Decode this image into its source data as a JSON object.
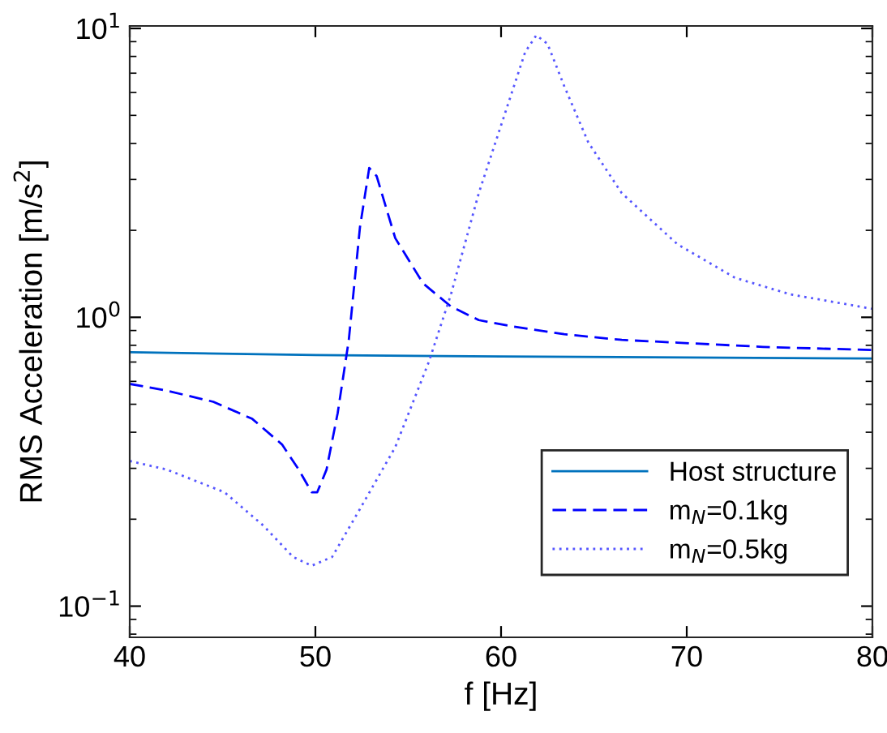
{
  "chart_data": {
    "type": "line",
    "xlabel": "f [Hz]",
    "ylabel": "RMS Acceleration [m/s$^{2}$]",
    "log": "y",
    "xlim": [
      40,
      80
    ],
    "xticks": [
      40,
      50,
      60,
      70,
      80
    ],
    "ylim": [
      0.078,
      10.2
    ],
    "yticks": [
      {
        "value": 0.1,
        "label": "10$^{−1}$"
      },
      {
        "value": 1,
        "label": "10$^{0}$"
      },
      {
        "value": 10,
        "label": "10$^{1}$"
      }
    ],
    "grid": false,
    "legend": "bottom right",
    "marker": "none",
    "series": [
      {
        "name": "Host structure",
        "color": "#0072bd",
        "line_style": "solid",
        "x": [
          40,
          50,
          60,
          70,
          80
        ],
        "values": [
          0.757,
          0.74,
          0.732,
          0.726,
          0.72
        ]
      },
      {
        "name": "m$_{N}$=0.1kg",
        "color": "#0000ff",
        "line_style": "dashed",
        "x": [
          40,
          42.0,
          44.5,
          46.6,
          48.2,
          49.1,
          49.8,
          50.1,
          50.6,
          51.2,
          51.8,
          52.4,
          52.9,
          53.3,
          54.3,
          55.8,
          57.3,
          58.8,
          60.4,
          63.4,
          66.5,
          69.5,
          74.1,
          80
        ],
        "values": [
          0.588,
          0.557,
          0.51,
          0.445,
          0.363,
          0.297,
          0.248,
          0.248,
          0.297,
          0.466,
          0.835,
          2.05,
          3.29,
          3.08,
          1.88,
          1.31,
          1.09,
          0.978,
          0.935,
          0.874,
          0.835,
          0.817,
          0.79,
          0.77
        ]
      },
      {
        "name": "m$_{N}$=0.5kg",
        "color": "#5555ff",
        "line_style": "dotted",
        "x": [
          40,
          42.0,
          45.1,
          47.2,
          48.8,
          49.8,
          50.9,
          52.4,
          54.3,
          56.1,
          57.3,
          58.8,
          60.4,
          61.3,
          61.9,
          62.5,
          63.4,
          64.7,
          66.5,
          69.5,
          72.6,
          75.6,
          80
        ],
        "values": [
          0.318,
          0.297,
          0.248,
          0.19,
          0.148,
          0.138,
          0.148,
          0.217,
          0.355,
          0.698,
          1.2,
          2.69,
          5.53,
          8.29,
          9.47,
          8.85,
          6.32,
          4.03,
          2.69,
          1.79,
          1.37,
          1.2,
          1.07
        ]
      }
    ]
  }
}
